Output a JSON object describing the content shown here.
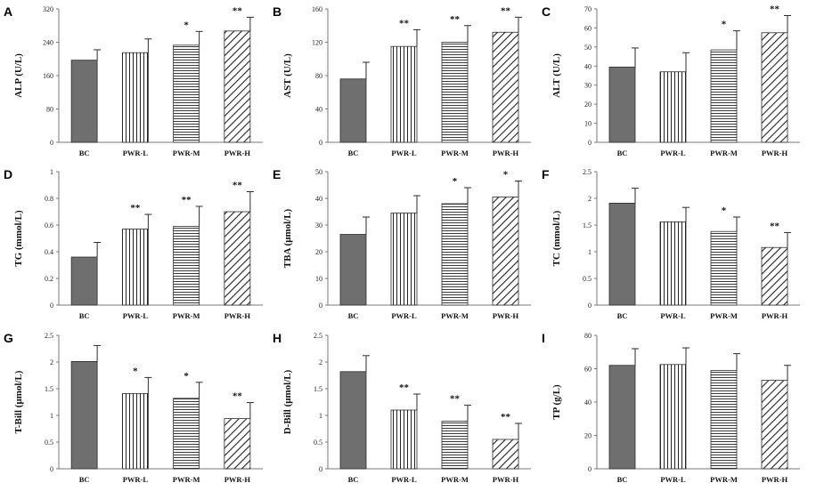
{
  "chart_data": [
    {
      "panel": "A",
      "type": "bar",
      "ylabel": "ALP (U/L)",
      "categories": [
        "BC",
        "PWR-L",
        "PWR-M",
        "PWR-H"
      ],
      "values": [
        197,
        215,
        233,
        267
      ],
      "errors": [
        25,
        33,
        33,
        33
      ],
      "significance": [
        "",
        "",
        "*",
        "**"
      ],
      "yticks": [
        "0",
        "80",
        "160",
        "240",
        "320"
      ],
      "ylim": [
        0,
        320
      ]
    },
    {
      "panel": "B",
      "type": "bar",
      "ylabel": "AST (U/L)",
      "categories": [
        "BC",
        "PWR-L",
        "PWR-M",
        "PWR-H"
      ],
      "values": [
        76,
        115,
        120,
        132
      ],
      "errors": [
        20,
        20,
        20,
        18
      ],
      "significance": [
        "",
        "**",
        "**",
        "**"
      ],
      "yticks": [
        "0",
        "40",
        "80",
        "120",
        "160"
      ],
      "ylim": [
        0,
        160
      ]
    },
    {
      "panel": "C",
      "type": "bar",
      "ylabel": "ALT (U/L)",
      "categories": [
        "BC",
        "PWR-L",
        "PWR-M",
        "PWR-H"
      ],
      "values": [
        39.5,
        37,
        48.5,
        57.5
      ],
      "errors": [
        10,
        10,
        10,
        9
      ],
      "significance": [
        "",
        "",
        "*",
        "**"
      ],
      "yticks": [
        "0",
        "10",
        "20",
        "30",
        "40",
        "50",
        "60",
        "70"
      ],
      "ylim": [
        0,
        70
      ]
    },
    {
      "panel": "D",
      "type": "bar",
      "ylabel": "TG (mmol/L)",
      "categories": [
        "BC",
        "PWR-L",
        "PWR-M",
        "PWR-H"
      ],
      "values": [
        0.36,
        0.57,
        0.59,
        0.7
      ],
      "errors": [
        0.11,
        0.11,
        0.15,
        0.15
      ],
      "significance": [
        "",
        "**",
        "**",
        "**"
      ],
      "yticks": [
        "0",
        "0.2",
        "0.4",
        "0.6",
        "0.8",
        "1"
      ],
      "ylim": [
        0,
        1
      ]
    },
    {
      "panel": "E",
      "type": "bar",
      "ylabel": "TBA (μmol/L)",
      "categories": [
        "BC",
        "PWR-L",
        "PWR-M",
        "PWR-H"
      ],
      "values": [
        26.5,
        34.5,
        38,
        40.5
      ],
      "errors": [
        6.5,
        6.5,
        6,
        6
      ],
      "significance": [
        "",
        "",
        "*",
        "*"
      ],
      "yticks": [
        "0",
        "10",
        "20",
        "30",
        "40",
        "50"
      ],
      "ylim": [
        0,
        50
      ]
    },
    {
      "panel": "F",
      "type": "bar",
      "ylabel": "TC (mmol/L)",
      "categories": [
        "BC",
        "PWR-L",
        "PWR-M",
        "PWR-H"
      ],
      "values": [
        1.91,
        1.56,
        1.38,
        1.08
      ],
      "errors": [
        0.28,
        0.27,
        0.27,
        0.28
      ],
      "significance": [
        "",
        "",
        "*",
        "**"
      ],
      "yticks": [
        "0",
        "0.5",
        "1",
        "1.5",
        "2",
        "2.5"
      ],
      "ylim": [
        0,
        2.5
      ]
    },
    {
      "panel": "G",
      "type": "bar",
      "ylabel": "T-Bill (μmol/L)",
      "categories": [
        "BC",
        "PWR-L",
        "PWR-M",
        "PWR-H"
      ],
      "values": [
        2.01,
        1.41,
        1.32,
        0.94
      ],
      "errors": [
        0.3,
        0.3,
        0.3,
        0.3
      ],
      "significance": [
        "",
        "*",
        "*",
        "**"
      ],
      "yticks": [
        "0",
        "0.5",
        "1",
        "1.5",
        "2",
        "2.5"
      ],
      "ylim": [
        0,
        2.5
      ]
    },
    {
      "panel": "H",
      "type": "bar",
      "ylabel": "D-Bill (μmol/L)",
      "categories": [
        "BC",
        "PWR-L",
        "PWR-M",
        "PWR-H"
      ],
      "values": [
        1.82,
        1.1,
        0.89,
        0.55
      ],
      "errors": [
        0.3,
        0.3,
        0.3,
        0.3
      ],
      "significance": [
        "",
        "**",
        "**",
        "**"
      ],
      "yticks": [
        "0",
        "0.5",
        "1",
        "1.5",
        "2",
        "2.5"
      ],
      "ylim": [
        0,
        2.5
      ]
    },
    {
      "panel": "I",
      "type": "bar",
      "ylabel": "TP (g/L)",
      "categories": [
        "BC",
        "PWR-L",
        "PWR-M",
        "PWR-H"
      ],
      "values": [
        62,
        62.5,
        59,
        53
      ],
      "errors": [
        10,
        10,
        10,
        9
      ],
      "significance": [
        "",
        "",
        "",
        ""
      ],
      "yticks": [
        "0",
        "20",
        "40",
        "60",
        "80"
      ],
      "ylim": [
        0,
        80
      ]
    }
  ],
  "colors": {
    "bc_fill": "#6f6f6f",
    "stroke": "#2b2b2b",
    "axis": "#7a7a7a"
  }
}
